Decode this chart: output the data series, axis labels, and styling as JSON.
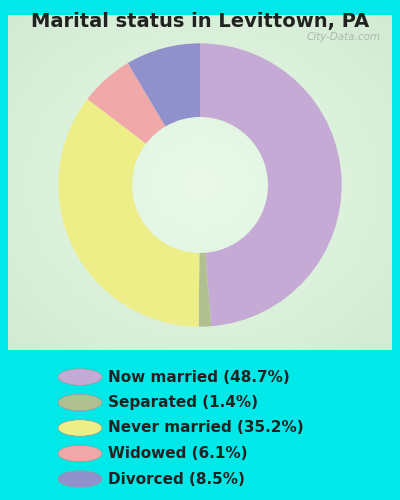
{
  "title": "Marital status in Levittown, PA",
  "wedge_sizes": [
    48.7,
    1.4,
    35.2,
    6.1,
    8.5
  ],
  "wedge_colors": [
    "#c4aad4",
    "#b0c090",
    "#eeee88",
    "#f0a8a8",
    "#9090cc"
  ],
  "labels": [
    "Now married (48.7%)",
    "Separated (1.4%)",
    "Never married (35.2%)",
    "Widowed (6.1%)",
    "Divorced (8.5%)"
  ],
  "legend_colors": [
    "#c4aad4",
    "#b0c090",
    "#eeee88",
    "#f0a8a8",
    "#9090cc"
  ],
  "bg_cyan": "#00e8e8",
  "bg_chart_center": "#d8edd8",
  "watermark": "City-Data.com",
  "title_fontsize": 14,
  "legend_fontsize": 11,
  "startangle": 90,
  "donut_width": 0.52
}
